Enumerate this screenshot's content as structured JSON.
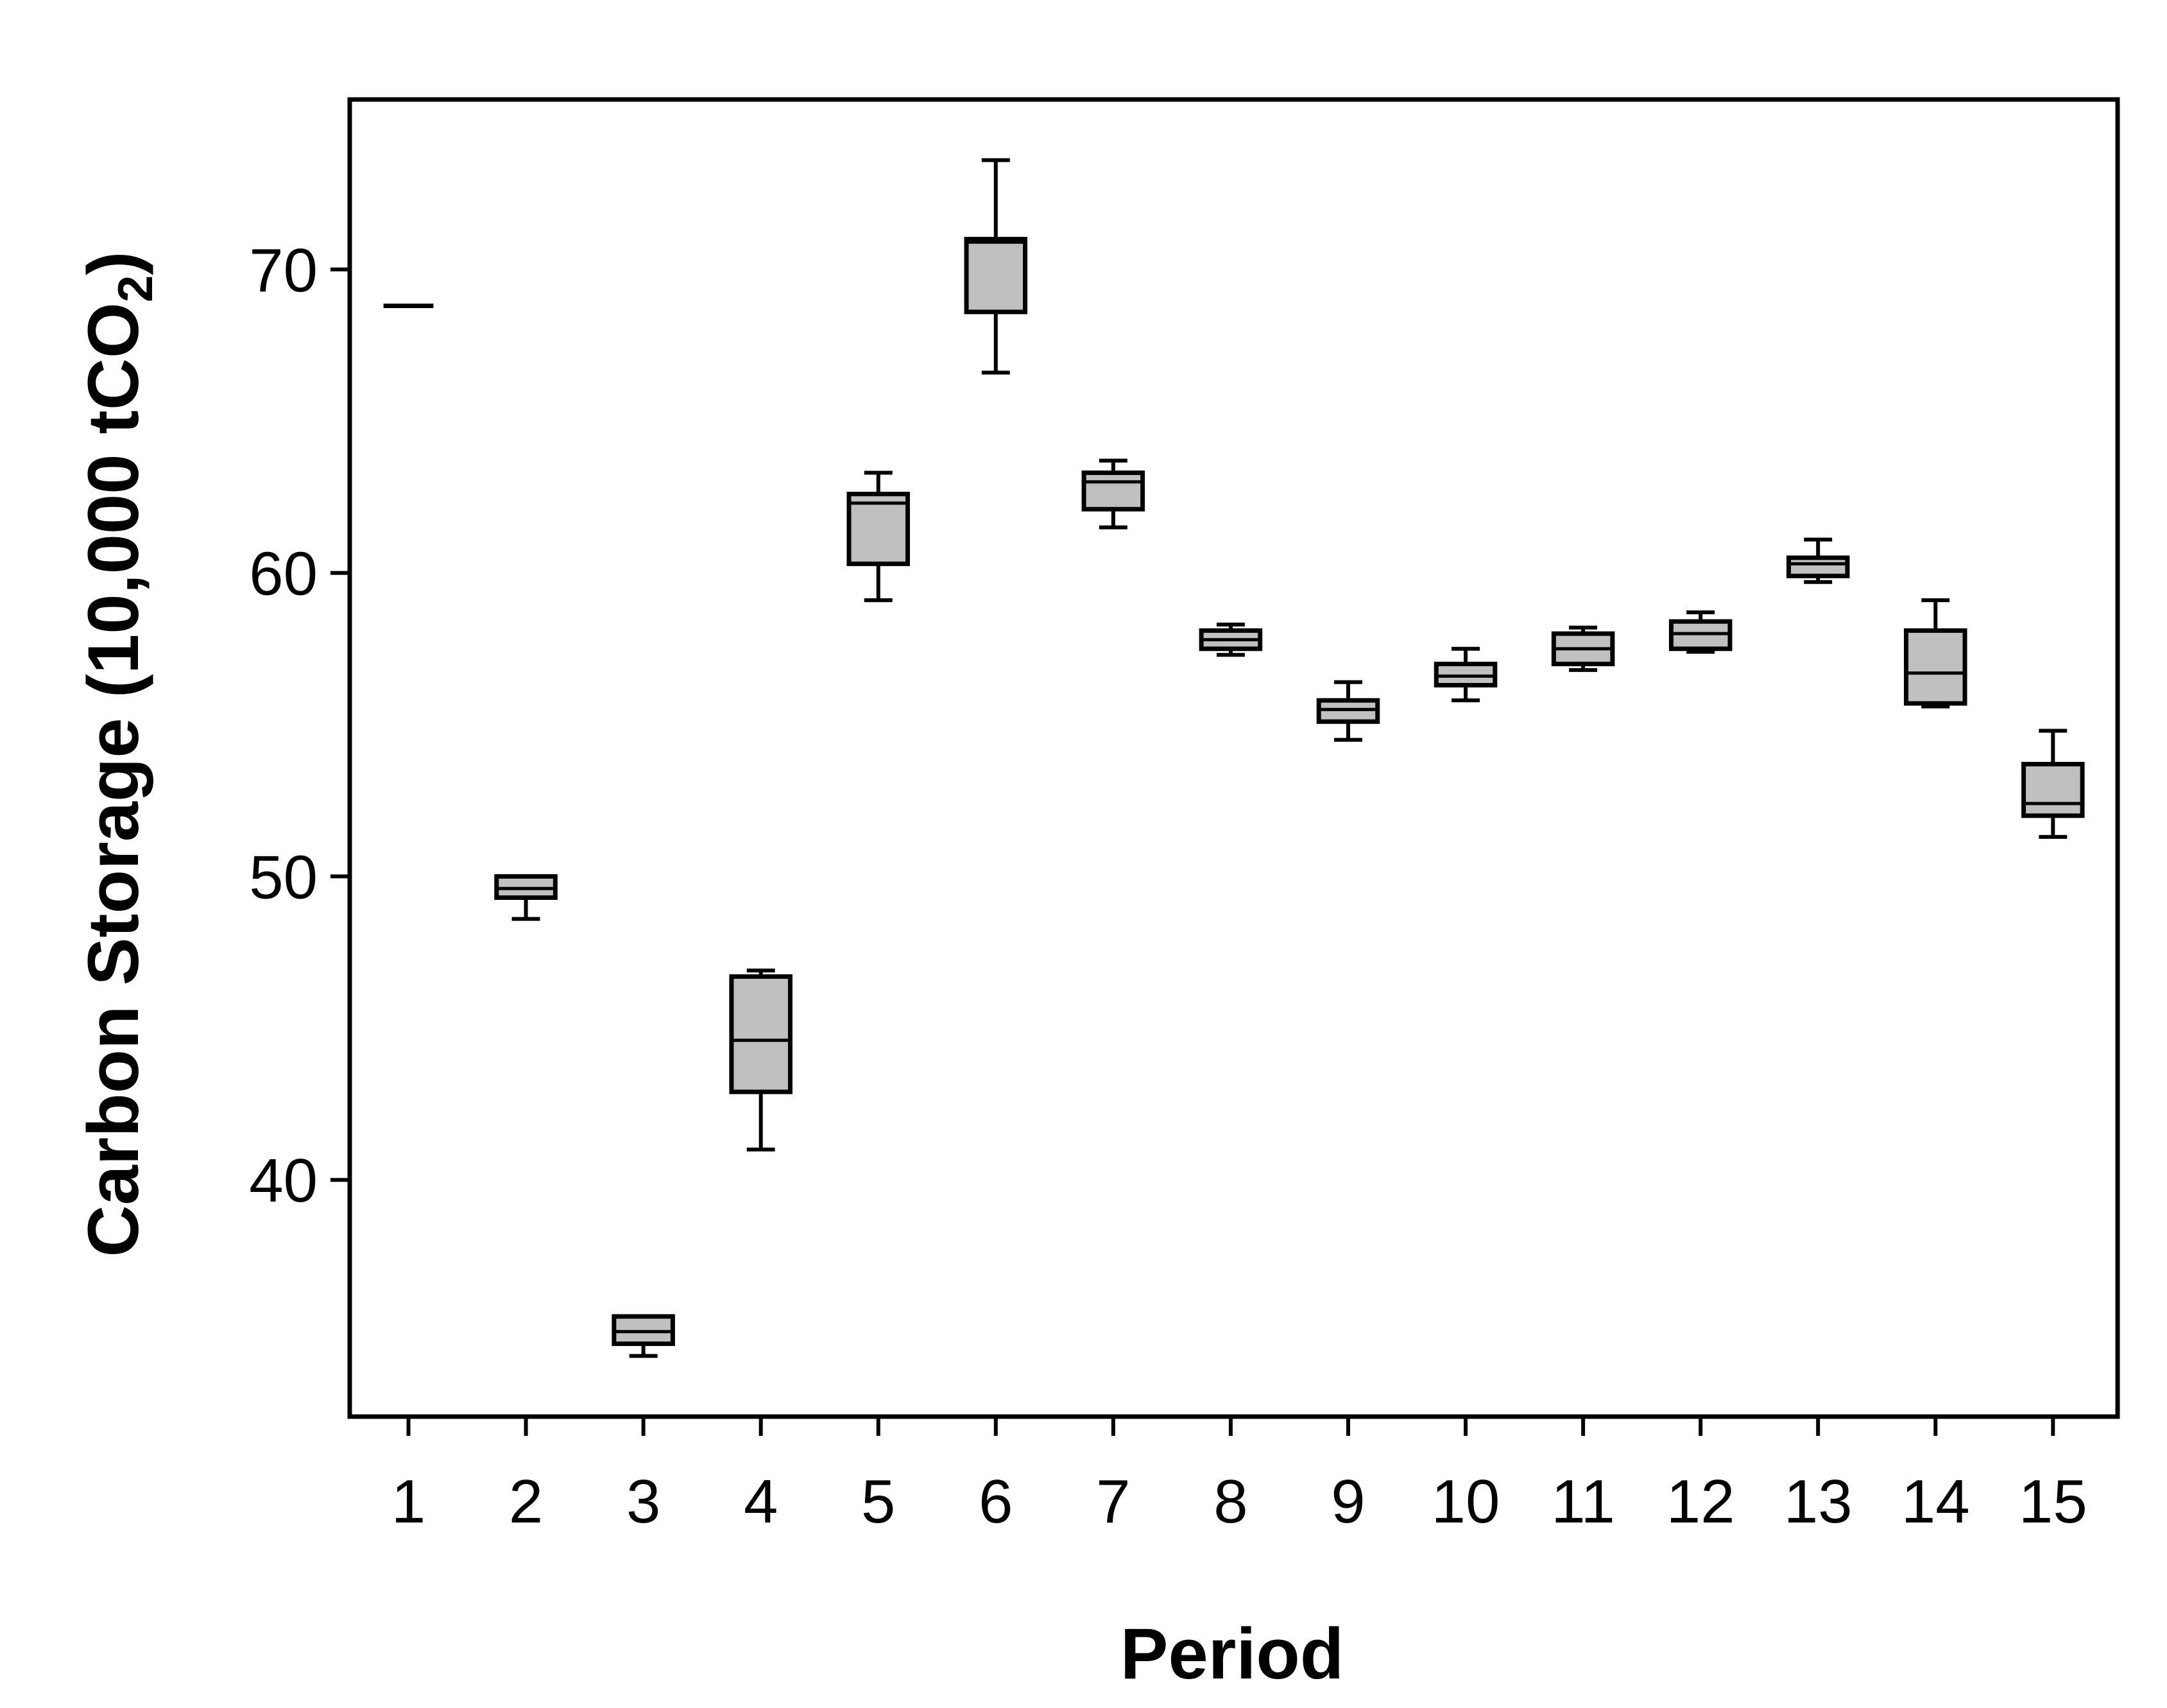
{
  "chart_data": {
    "type": "box",
    "title": "",
    "xlabel": "Period",
    "ylabel": "Carbon Storage (10,000 tCO",
    "ylabel_subscript": "2",
    "ylabel_close": ")",
    "ylim": [
      32.2,
      75.6
    ],
    "yticks": [
      "40",
      "50",
      "60",
      "70"
    ],
    "categories": [
      "1",
      "2",
      "3",
      "4",
      "5",
      "6",
      "7",
      "8",
      "9",
      "10",
      "11",
      "12",
      "13",
      "14",
      "15"
    ],
    "colors": {
      "box_fill": "#c0c0c0",
      "stroke": "#000000"
    },
    "grid": false,
    "boxes": [
      {
        "period": "1",
        "min": 68.8,
        "q1": 68.8,
        "median": 68.8,
        "q3": 68.8,
        "max": 68.8
      },
      {
        "period": "2",
        "min": 48.6,
        "q1": 49.3,
        "median": 49.6,
        "q3": 50.0,
        "max": 50.0
      },
      {
        "period": "3",
        "min": 34.2,
        "q1": 34.6,
        "median": 35.0,
        "q3": 35.5,
        "max": 35.5
      },
      {
        "period": "4",
        "min": 41.0,
        "q1": 42.9,
        "median": 44.6,
        "q3": 46.7,
        "max": 46.9
      },
      {
        "period": "5",
        "min": 59.1,
        "q1": 60.3,
        "median": 62.3,
        "q3": 62.6,
        "max": 63.3
      },
      {
        "period": "6",
        "min": 66.6,
        "q1": 68.6,
        "median": 70.9,
        "q3": 71.0,
        "max": 73.6
      },
      {
        "period": "7",
        "min": 61.5,
        "q1": 62.1,
        "median": 63.0,
        "q3": 63.3,
        "max": 63.7
      },
      {
        "period": "8",
        "min": 57.3,
        "q1": 57.5,
        "median": 57.8,
        "q3": 58.1,
        "max": 58.3
      },
      {
        "period": "9",
        "min": 54.5,
        "q1": 55.1,
        "median": 55.5,
        "q3": 55.8,
        "max": 56.4
      },
      {
        "period": "10",
        "min": 55.8,
        "q1": 56.3,
        "median": 56.6,
        "q3": 57.0,
        "max": 57.5
      },
      {
        "period": "11",
        "min": 56.8,
        "q1": 57.0,
        "median": 57.5,
        "q3": 58.0,
        "max": 58.2
      },
      {
        "period": "12",
        "min": 57.4,
        "q1": 57.5,
        "median": 58.0,
        "q3": 58.4,
        "max": 58.7
      },
      {
        "period": "13",
        "min": 59.7,
        "q1": 59.9,
        "median": 60.3,
        "q3": 60.5,
        "max": 61.1
      },
      {
        "period": "14",
        "min": 55.6,
        "q1": 55.7,
        "median": 56.7,
        "q3": 58.1,
        "max": 59.1
      },
      {
        "period": "15",
        "min": 51.3,
        "q1": 52.0,
        "median": 52.4,
        "q3": 53.7,
        "max": 54.8
      }
    ]
  }
}
